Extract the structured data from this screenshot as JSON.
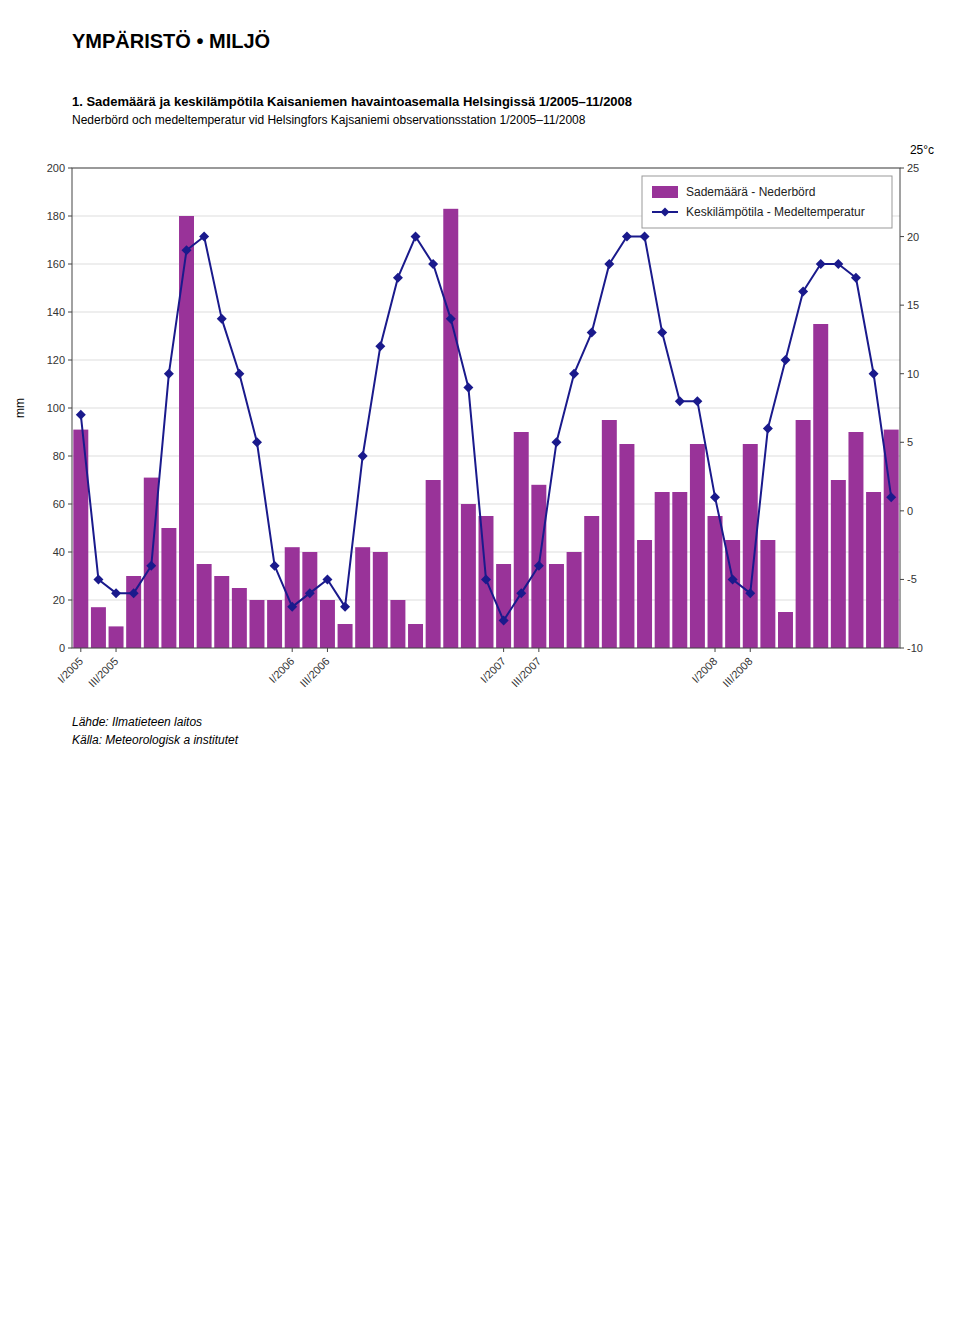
{
  "chart_data": {
    "type": "bar",
    "title": "1. Sademäärä ja keskilämpötila Kaisaniemen havaintoasemalla Helsingissä 1/2005–11/2008",
    "subtitle": "Nederbörd och medeltemperatur vid Helsingfors Kajsaniemi observationsstation 1/2005–11/2008",
    "annotations": [
      "YMPÄRISTÖ • MILJÖ",
      "Lähde: Ilmatieteen laitos",
      "Källa: Meteorologisk a institutet"
    ],
    "ylabel": "mm",
    "y2label": "25°c",
    "categories": [
      "I/2005",
      null,
      "III/2005",
      null,
      null,
      null,
      null,
      null,
      null,
      null,
      null,
      null,
      "I/2006",
      null,
      "III/2006",
      null,
      null,
      null,
      null,
      null,
      null,
      null,
      null,
      null,
      "I/2007",
      null,
      "III/2007",
      null,
      null,
      null,
      null,
      null,
      null,
      null,
      null,
      null,
      "I/2008",
      null,
      "III/2008",
      null,
      null,
      null,
      null,
      null,
      null,
      null,
      null
    ],
    "series": [
      {
        "name": "Sademäärä - Nederbörd",
        "type": "bar",
        "color": "#993399",
        "values": [
          91,
          17,
          9,
          30,
          71,
          50,
          180,
          35,
          30,
          25,
          20,
          20,
          42,
          40,
          20,
          10,
          42,
          40,
          20,
          10,
          70,
          183,
          60,
          55,
          35,
          90,
          68,
          35,
          40,
          55,
          95,
          85,
          45,
          65,
          65,
          85,
          55,
          45,
          85,
          45,
          15,
          95,
          135,
          70,
          90,
          65,
          91
        ]
      },
      {
        "name": "Keskilämpötila - Medeltemperatur",
        "type": "line",
        "color": "#1a1a8c",
        "marker": "diamond",
        "axis": "y2",
        "values": [
          7,
          -5,
          -6,
          -6,
          -4,
          10,
          19,
          20,
          14,
          10,
          5,
          -4,
          -7,
          -6,
          -5,
          -7,
          4,
          12,
          17,
          20,
          18,
          14,
          9,
          -5,
          -8,
          -6,
          -4,
          5,
          10,
          13,
          18,
          20,
          20,
          13,
          8,
          8,
          1,
          -5,
          -6,
          6,
          11,
          16,
          18,
          18,
          17,
          10,
          1
        ]
      }
    ],
    "ylim": [
      0,
      200
    ],
    "yticks": [
      0,
      20,
      40,
      60,
      80,
      100,
      120,
      140,
      160,
      180,
      200
    ],
    "y2lim": [
      -10,
      25
    ],
    "y2ticks": [
      -10,
      -5,
      0,
      5,
      10,
      15,
      20,
      25
    ],
    "grid": true,
    "legend": "upper right"
  }
}
